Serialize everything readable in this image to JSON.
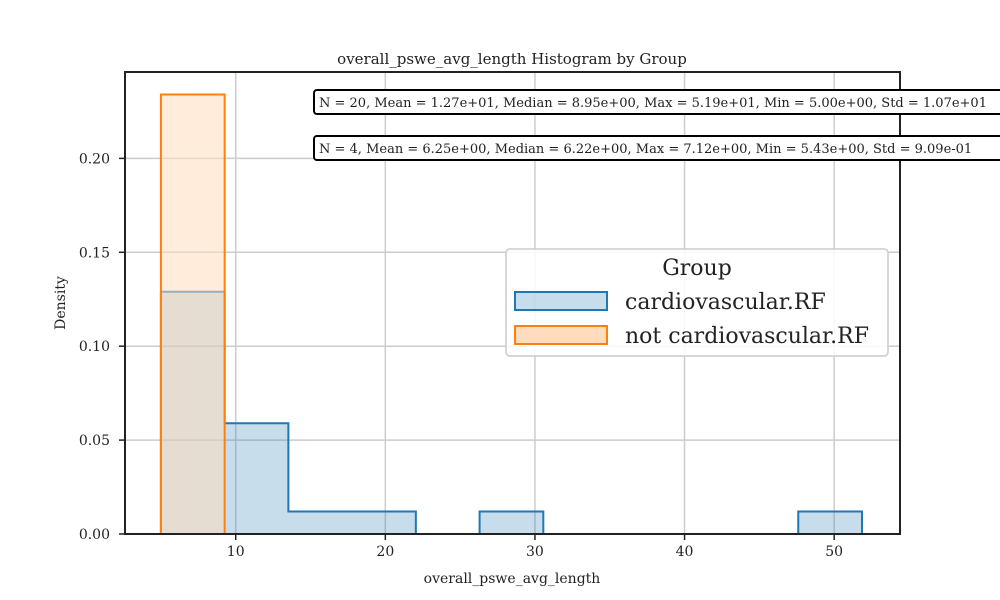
{
  "chart_data": {
    "type": "histogram",
    "title": "overall_pswe_avg_length Histogram by Group",
    "xlabel": "overall_pswe_avg_length",
    "ylabel": "Density",
    "xlim": [
      2.6,
      54.4
    ],
    "ylim": [
      0,
      0.246
    ],
    "x_ticks": [
      10,
      20,
      30,
      40,
      50
    ],
    "y_ticks": [
      0.0,
      0.05,
      0.1,
      0.15,
      0.2
    ],
    "y_tick_labels": [
      "0.00",
      "0.05",
      "0.10",
      "0.15",
      "0.20"
    ],
    "grid": true,
    "legend": {
      "title": "Group",
      "placement": "center-right",
      "entries": [
        "cardiovascular.RF",
        "not cardiovascular.RF"
      ]
    },
    "series": [
      {
        "name": "cardiovascular.RF",
        "edge_color": "#1f77b4",
        "fill_color": "#1f77b4",
        "bins": [
          {
            "x0": 5.0,
            "x1": 9.26,
            "density": 0.129
          },
          {
            "x0": 9.26,
            "x1": 13.52,
            "density": 0.059
          },
          {
            "x0": 13.52,
            "x1": 17.78,
            "density": 0.012
          },
          {
            "x0": 17.78,
            "x1": 22.04,
            "density": 0.012
          },
          {
            "x0": 22.04,
            "x1": 26.3,
            "density": 0.0
          },
          {
            "x0": 26.3,
            "x1": 30.56,
            "density": 0.012
          },
          {
            "x0": 30.56,
            "x1": 34.82,
            "density": 0.0
          },
          {
            "x0": 34.82,
            "x1": 39.08,
            "density": 0.0
          },
          {
            "x0": 39.08,
            "x1": 43.34,
            "density": 0.0
          },
          {
            "x0": 43.34,
            "x1": 47.6,
            "density": 0.0
          },
          {
            "x0": 47.6,
            "x1": 51.86,
            "density": 0.012
          }
        ]
      },
      {
        "name": "not cardiovascular.RF",
        "edge_color": "#ff7f0e",
        "fill_color": "#ffdcbe",
        "bins": [
          {
            "x0": 5.0,
            "x1": 9.26,
            "density": 0.234
          }
        ]
      }
    ],
    "annotations": [
      "N = 20, Mean = 1.27e+01, Median = 8.95e+00, Max = 5.19e+01, Min = 5.00e+00, Std = 1.07e+01",
      "N = 4, Mean = 6.25e+00, Median = 6.22e+00, Max = 7.12e+00, Min = 5.43e+00, Std = 9.09e-01"
    ]
  }
}
